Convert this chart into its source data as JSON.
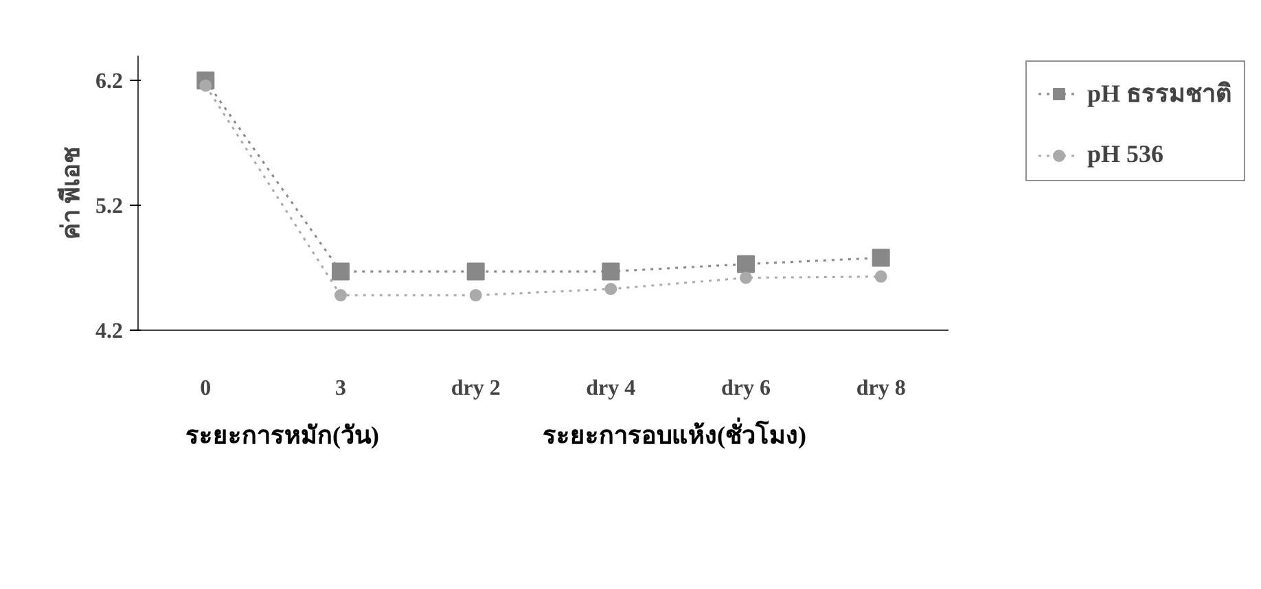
{
  "chart_data": {
    "type": "line",
    "ylabel": "ค่า พีเอช",
    "xlabel": "ระยะการหมัก(วัน)",
    "annotations": [
      "ระยะการอบแห้ง(ชั่วโมง)"
    ],
    "categories": [
      "0",
      "3",
      "dry 2",
      "dry 4",
      "dry 6",
      "dry 8"
    ],
    "series": [
      {
        "name": "pH ธรรมชาติ",
        "color": "#888888",
        "marker": "square",
        "values": [
          6.2,
          4.67,
          4.67,
          4.67,
          4.73,
          4.78
        ]
      },
      {
        "name": "pH 536",
        "color": "#aaaaaa",
        "marker": "circle",
        "values": [
          6.16,
          4.48,
          4.48,
          4.53,
          4.62,
          4.63
        ]
      }
    ],
    "ylim": [
      4.2,
      6.4
    ],
    "yticks": [
      4.2,
      5.2,
      6.2
    ],
    "grid": false,
    "legend": "top right",
    "line_style": "dotted"
  }
}
